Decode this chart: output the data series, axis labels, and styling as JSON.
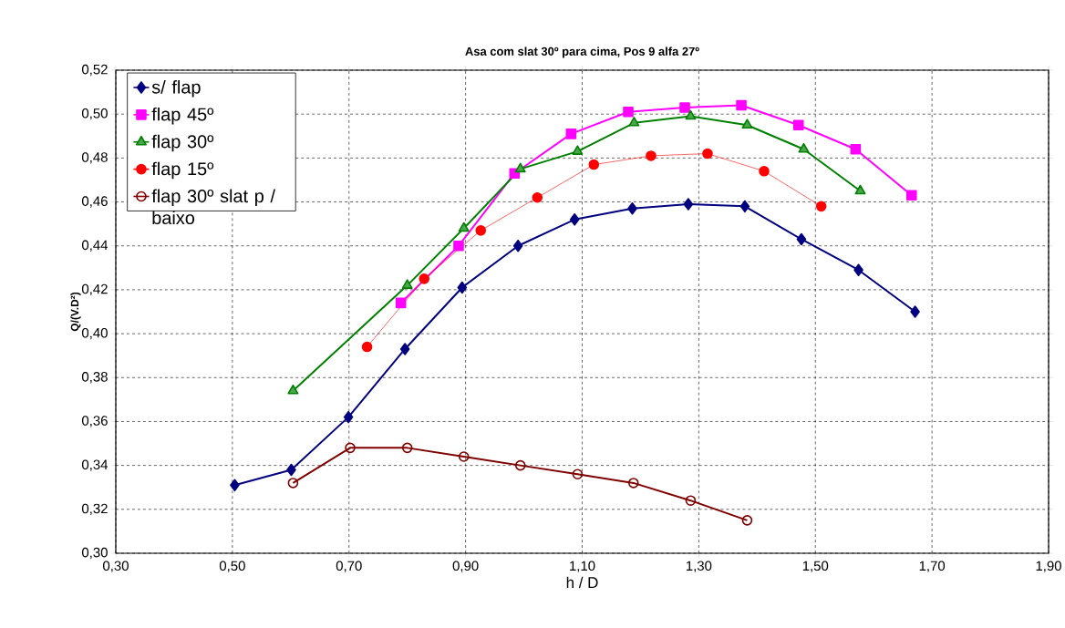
{
  "chart_data": {
    "type": "line",
    "title": "Asa com slat 30º para cima, Pos 9 alfa 27º",
    "xlabel": "h / D",
    "ylabel": "Q/(V.D²)",
    "xlim": [
      0.3,
      1.9
    ],
    "ylim": [
      0.3,
      0.52
    ],
    "xticks": [
      {
        "value": 0.3,
        "label": "0,30"
      },
      {
        "value": 0.5,
        "label": "0,50"
      },
      {
        "value": 0.7,
        "label": "0,70"
      },
      {
        "value": 0.9,
        "label": "0,90"
      },
      {
        "value": 1.1,
        "label": "1,10"
      },
      {
        "value": 1.3,
        "label": "1,30"
      },
      {
        "value": 1.5,
        "label": "1,50"
      },
      {
        "value": 1.7,
        "label": "1,70"
      },
      {
        "value": 1.9,
        "label": "1,90"
      }
    ],
    "yticks": [
      {
        "value": 0.3,
        "label": "0,30"
      },
      {
        "value": 0.32,
        "label": "0,32"
      },
      {
        "value": 0.34,
        "label": "0,34"
      },
      {
        "value": 0.36,
        "label": "0,36"
      },
      {
        "value": 0.38,
        "label": "0,38"
      },
      {
        "value": 0.4,
        "label": "0,40"
      },
      {
        "value": 0.42,
        "label": "0,42"
      },
      {
        "value": 0.44,
        "label": "0,44"
      },
      {
        "value": 0.46,
        "label": "0,46"
      },
      {
        "value": 0.48,
        "label": "0,48"
      },
      {
        "value": 0.5,
        "label": "0,50"
      },
      {
        "value": 0.52,
        "label": "0,52"
      }
    ],
    "grid": true,
    "legend": "top left",
    "series": [
      {
        "name": "s/ flap",
        "color": "#000080",
        "marker": "diamond",
        "x": [
          0.504,
          0.601,
          0.699,
          0.796,
          0.894,
          0.99,
          1.087,
          1.186,
          1.282,
          1.379,
          1.476,
          1.574,
          1.671
        ],
        "values": [
          0.331,
          0.338,
          0.362,
          0.393,
          0.421,
          0.44,
          0.452,
          0.457,
          0.459,
          0.458,
          0.443,
          0.429,
          0.41
        ]
      },
      {
        "name": "flap 45º",
        "color": "#ff00ff",
        "marker": "square",
        "x": [
          0.789,
          0.888,
          0.984,
          1.081,
          1.179,
          1.276,
          1.373,
          1.471,
          1.569,
          1.665
        ],
        "values": [
          0.414,
          0.44,
          0.473,
          0.491,
          0.501,
          0.503,
          0.504,
          0.495,
          0.484,
          0.463
        ]
      },
      {
        "name": "flap 30º",
        "color": "#008000",
        "marker": "triangle",
        "x": [
          0.604,
          0.8,
          0.897,
          0.994,
          1.092,
          1.189,
          1.286,
          1.383,
          1.48,
          1.577
        ],
        "values": [
          0.374,
          0.422,
          0.448,
          0.475,
          0.483,
          0.496,
          0.499,
          0.495,
          0.484,
          0.465
        ]
      },
      {
        "name": "flap 15º",
        "color": "#ff0000",
        "marker": "circle",
        "x": [
          0.731,
          0.829,
          0.926,
          1.023,
          1.12,
          1.218,
          1.315,
          1.412,
          1.51
        ],
        "values": [
          0.394,
          0.425,
          0.447,
          0.462,
          0.477,
          0.481,
          0.482,
          0.474,
          0.458
        ]
      },
      {
        "name": "flap 30º slat p / baixo",
        "color": "#800000",
        "marker": "open circle",
        "x": [
          0.604,
          0.702,
          0.8,
          0.897,
          0.994,
          1.092,
          1.188,
          1.286,
          1.383
        ],
        "values": [
          0.332,
          0.348,
          0.348,
          0.344,
          0.34,
          0.336,
          0.332,
          0.324,
          0.315
        ]
      }
    ]
  }
}
